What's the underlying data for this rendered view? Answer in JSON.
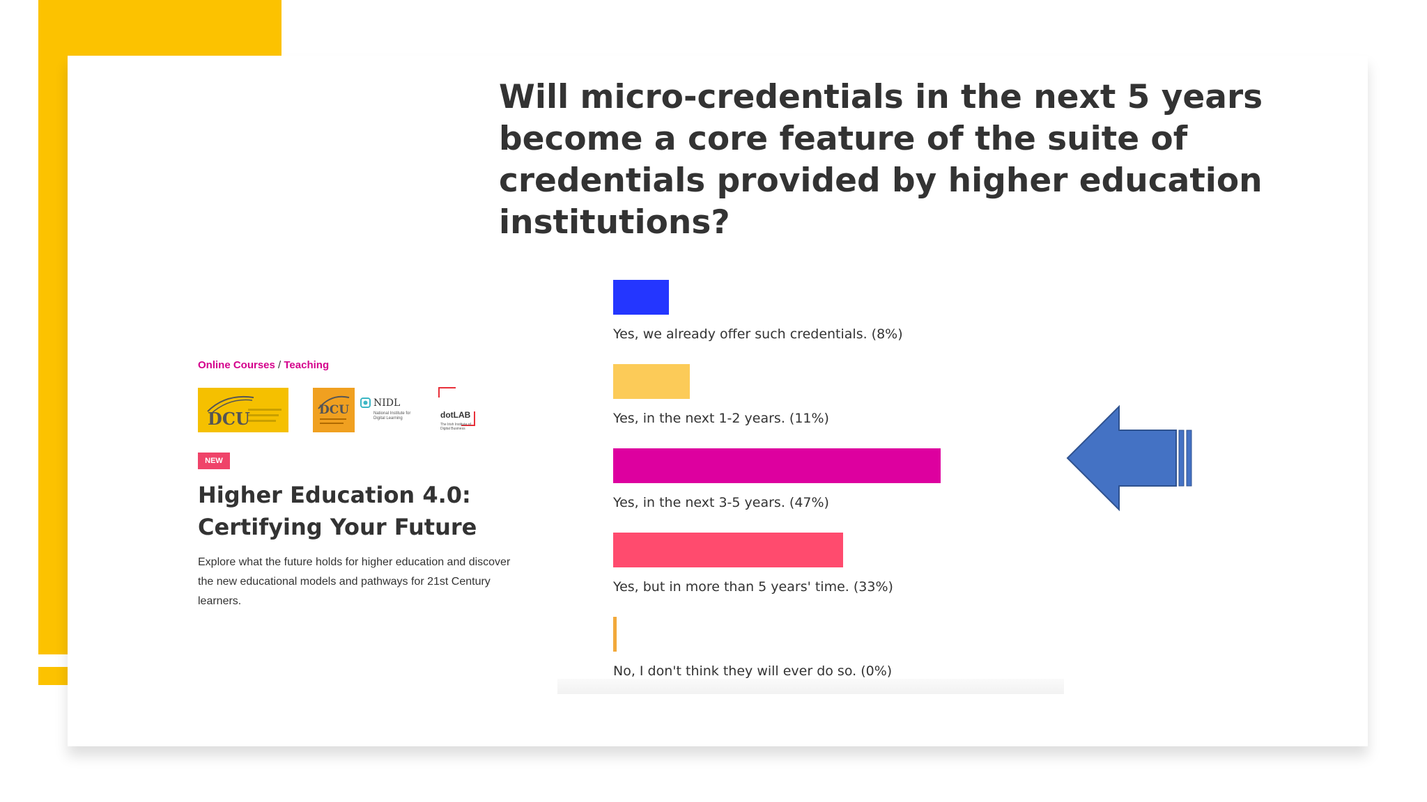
{
  "slide": {
    "question": "Will micro-credentials in the next 5 years become a core feature of the suite of credentials provided by higher education institutions?"
  },
  "course": {
    "breadcrumb_part1": "Online Courses",
    "breadcrumb_sep": "/",
    "breadcrumb_part2": "Teaching",
    "logo_dcu_text": "DCU",
    "logo_dcu2_text": "DCU",
    "nidl_text": "NIDL",
    "nidl_sub": "National Institute for Digital Learning",
    "dotlab_text": "dotLAB",
    "dotlab_sub": "The Irish Institute of Digital Business",
    "badge": "NEW",
    "title": "Higher Education 4.0: Certifying Your Future",
    "description": "Explore what the future holds for higher education and discover the new educational models and pathways for 21st Century learners."
  },
  "chart_data": {
    "type": "bar",
    "orientation": "horizontal",
    "title": "",
    "xlabel": "",
    "ylabel": "",
    "xlim": [
      0,
      100
    ],
    "grid": false,
    "categories": [
      "Yes, we already offer such credentials. (8%)",
      "Yes, in the next 1-2 years. (11%)",
      "Yes, in the next 3-5 years. (47%)",
      "Yes, but in more than 5 years' time. (33%)",
      "No, I don't think they will ever do so. (0%)"
    ],
    "values": [
      8,
      11,
      47,
      33,
      0
    ],
    "colors": [
      "#2436ff",
      "#fccb58",
      "#dd009f",
      "#ff4b6e",
      "#f2a93b"
    ]
  },
  "annotation": {
    "arrow_color": "#4472c4",
    "arrow_target": "Yes, in the next 3-5 years. (47%)"
  }
}
